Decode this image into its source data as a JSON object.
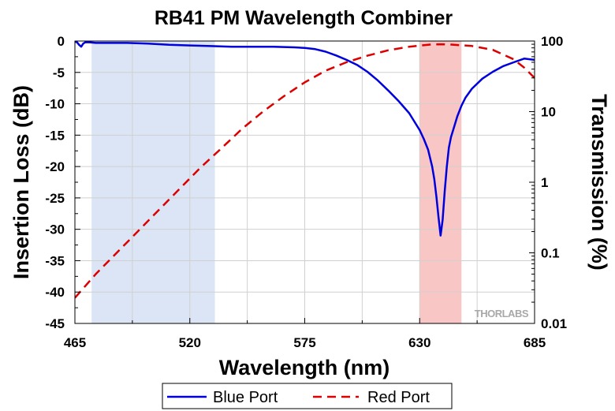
{
  "chart_data": {
    "type": "line",
    "title": "RB41 PM Wavelength Combiner",
    "xlabel": "Wavelength (nm)",
    "ylabel": "Insertion Loss (dB)",
    "y2label": "Transmission (%)",
    "xlim": [
      465,
      685
    ],
    "ylim": [
      -45,
      0
    ],
    "y2lim": [
      0.01,
      100
    ],
    "y2scale": "log",
    "x_ticks": [
      "465",
      "520",
      "575",
      "630",
      "685"
    ],
    "y_ticks": [
      "0",
      "-5",
      "-10",
      "-15",
      "-20",
      "-25",
      "-30",
      "-35",
      "-40",
      "-45"
    ],
    "y2_ticks": [
      "100",
      "10",
      "1",
      "0.1",
      "0.01"
    ],
    "grid": true,
    "legend_position": "bottom",
    "watermark": "THORLABS",
    "shaded_bands": [
      {
        "x": [
          473,
          532
        ],
        "color": "#dce5f5"
      },
      {
        "x": [
          630,
          650
        ],
        "color": "#f9c6c6"
      }
    ],
    "series": [
      {
        "name": "Blue Port",
        "axis": "left",
        "color": "#0000dd",
        "style": "solid",
        "x": [
          465,
          466,
          467,
          468,
          469,
          470,
          472,
          475,
          480,
          490,
          500,
          510,
          520,
          530,
          540,
          550,
          560,
          570,
          575,
          580,
          585,
          590,
          595,
          600,
          605,
          610,
          615,
          620,
          625,
          630,
          632,
          634,
          636,
          637,
          638,
          639,
          640,
          641,
          642,
          643,
          644,
          645,
          646,
          648,
          650,
          652,
          655,
          660,
          665,
          670,
          675,
          680,
          685
        ],
        "y": [
          -0.1,
          -0.2,
          -0.6,
          -0.9,
          -0.4,
          -0.2,
          -0.2,
          -0.3,
          -0.3,
          -0.3,
          -0.4,
          -0.6,
          -0.7,
          -0.8,
          -0.9,
          -0.9,
          -0.9,
          -1.0,
          -1.1,
          -1.3,
          -1.7,
          -2.3,
          -3.0,
          -3.8,
          -4.9,
          -6.3,
          -7.9,
          -9.6,
          -11.5,
          -14.2,
          -15.6,
          -17.3,
          -20.0,
          -22.0,
          -24.8,
          -28.0,
          -31.0,
          -28.5,
          -24.0,
          -20.0,
          -17.0,
          -15.3,
          -14.2,
          -12.0,
          -10.3,
          -9.0,
          -7.6,
          -6.0,
          -4.9,
          -4.0,
          -3.4,
          -2.8,
          -3.0
        ]
      },
      {
        "name": "Red Port",
        "axis": "right",
        "color": "#dd0000",
        "style": "dashed",
        "x": [
          465,
          475,
          485,
          495,
          505,
          515,
          525,
          535,
          545,
          555,
          565,
          575,
          585,
          595,
          605,
          615,
          625,
          635,
          640,
          645,
          655,
          665,
          675,
          680,
          685
        ],
        "y": [
          0.023,
          0.05,
          0.1,
          0.2,
          0.4,
          0.8,
          1.6,
          3.0,
          5.7,
          10.0,
          16.5,
          26.0,
          38.0,
          50.0,
          62.0,
          74.0,
          83.0,
          89.0,
          90.0,
          89.0,
          85.0,
          75.0,
          55.0,
          42.0,
          30.0
        ]
      }
    ]
  }
}
